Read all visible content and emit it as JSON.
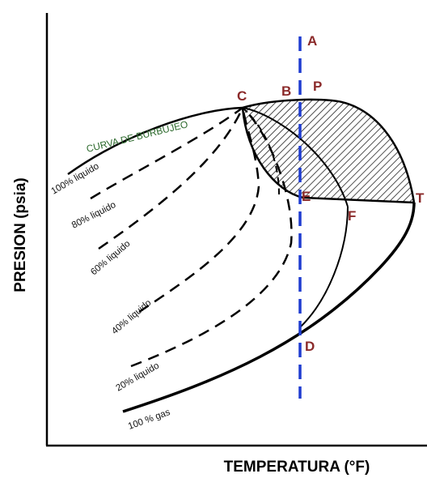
{
  "diagram": {
    "x_axis_title": "TEMPERATURA (°F)",
    "y_axis_title": "PRESION (psia)",
    "bubble_curve_label": "CURVA DE BURBUJEO",
    "quality_lines": [
      {
        "label": "100% liquido"
      },
      {
        "label": "80% liquido"
      },
      {
        "label": "60% liquido"
      },
      {
        "label": "40% liquido"
      },
      {
        "label": "20% liquido"
      },
      {
        "label": "100 % gas"
      }
    ],
    "points": {
      "A": "A",
      "B": "B",
      "P": "P",
      "C": "C",
      "E": "E",
      "F": "F",
      "T": "T",
      "D": "D"
    },
    "colors": {
      "axis": "#000000",
      "curves": "#000000",
      "isothermal_line": "#1e3cd0",
      "point_labels": "#8b2a2a",
      "bubble_curve_label": "#2e6b2e",
      "hatch": "#222222"
    },
    "hatched_region": "retrograde-region"
  }
}
